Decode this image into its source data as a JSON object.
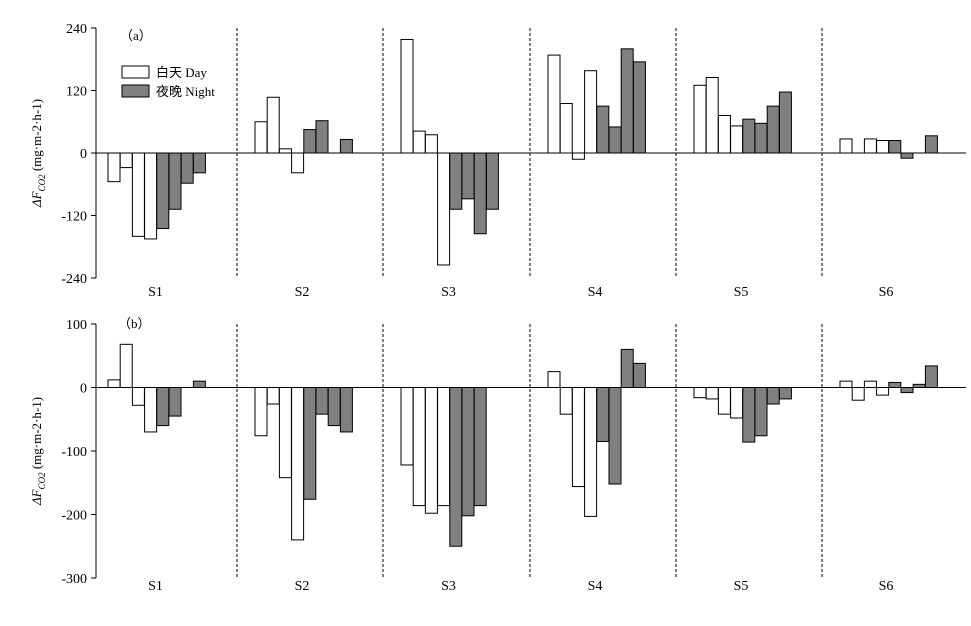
{
  "chart_data": [
    {
      "type": "bar",
      "panel_label": "（a）",
      "ylabel": "ΔF",
      "ylabel_sub": "CO2",
      "ylabel_unit": " (mg·m-2·h-1)",
      "ylim": [
        -240,
        240
      ],
      "yticks": [
        "240",
        "120",
        "0",
        "-120",
        "-240"
      ],
      "ytick_values": [
        240,
        120,
        0,
        -120,
        -240
      ],
      "groups": [
        "S1",
        "S2",
        "S3",
        "S4",
        "S5",
        "S6"
      ],
      "legend": {
        "placement": "top-left",
        "day": "白天 Day",
        "night": "夜晚 Night"
      },
      "series": [
        {
          "name": "白天 Day",
          "color": "#ffffff",
          "values": [
            [
              -55,
              -28,
              -160,
              -165
            ],
            [
              60,
              107,
              8,
              -38
            ],
            [
              218,
              42,
              35,
              -215
            ],
            [
              188,
              95,
              -12,
              158
            ],
            [
              130,
              145,
              72,
              52
            ],
            [
              27,
              0,
              27,
              24
            ]
          ]
        },
        {
          "name": "夜晚 Night",
          "color": "#808080",
          "values": [
            [
              -145,
              -108,
              -58,
              -38
            ],
            [
              45,
              62,
              0,
              26
            ],
            [
              -108,
              -88,
              -155,
              -108
            ],
            [
              90,
              50,
              200,
              175
            ],
            [
              65,
              57,
              90,
              117
            ],
            [
              24,
              -10,
              0,
              33
            ]
          ]
        }
      ]
    },
    {
      "type": "bar",
      "panel_label": "（b）",
      "ylabel": "ΔF",
      "ylabel_sub": "CO2",
      "ylabel_unit": " (mg·m-2·h-1)",
      "ylim": [
        -300,
        100
      ],
      "yticks": [
        "100",
        "0",
        "-100",
        "-200",
        "-300"
      ],
      "ytick_values": [
        100,
        0,
        -100,
        -200,
        -300
      ],
      "groups": [
        "S1",
        "S2",
        "S3",
        "S4",
        "S5",
        "S6"
      ],
      "series": [
        {
          "name": "白天 Day",
          "color": "#ffffff",
          "values": [
            [
              12,
              68,
              -28,
              -70
            ],
            [
              -76,
              -26,
              -142,
              -240
            ],
            [
              -122,
              -186,
              -198,
              -186
            ],
            [
              25,
              -42,
              -156,
              -203
            ],
            [
              -16,
              -18,
              -42,
              -48
            ],
            [
              10,
              -20,
              10,
              -12
            ]
          ]
        },
        {
          "name": "夜晚 Night",
          "color": "#808080",
          "values": [
            [
              -60,
              -45,
              0,
              10
            ],
            [
              -176,
              -42,
              -60,
              -70
            ],
            [
              -250,
              -202,
              -186,
              0
            ],
            [
              -85,
              -152,
              60,
              38
            ],
            [
              -86,
              -76,
              -26,
              -18
            ],
            [
              8,
              -8,
              5,
              34
            ]
          ]
        }
      ]
    }
  ]
}
